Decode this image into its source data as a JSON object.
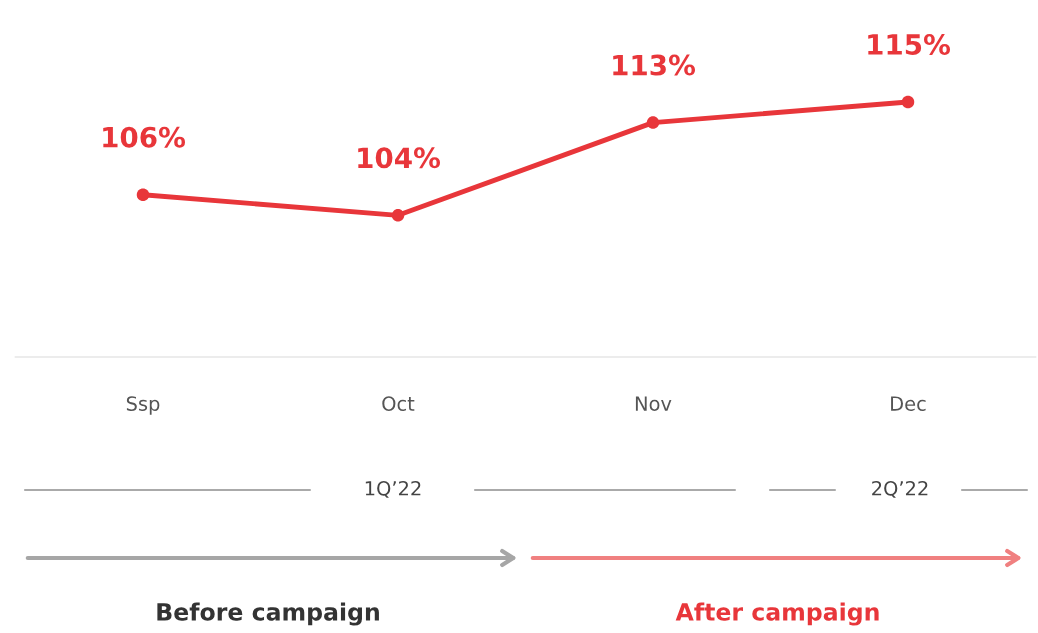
{
  "chart_data": {
    "type": "line",
    "categories": [
      "Ssp",
      "Oct",
      "Nov",
      "Dec"
    ],
    "series": [
      {
        "color": "#e8363a",
        "values": [
          106,
          104,
          113,
          115
        ],
        "value_labels": [
          "106%",
          "104%",
          "113%",
          "115%"
        ]
      }
    ],
    "marker": "circle",
    "grid": false,
    "annotations": [
      "1Q’22",
      "2Q’22",
      "Before campaign",
      "After campaign"
    ]
  }
}
